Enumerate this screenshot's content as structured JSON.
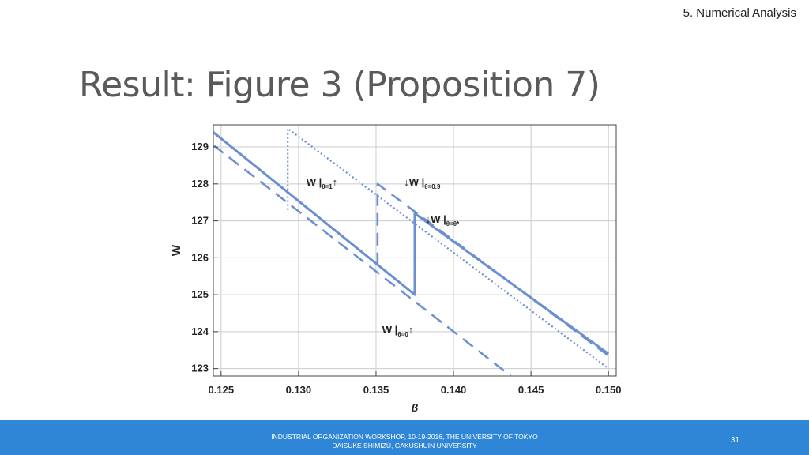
{
  "header": {
    "section": "5. Numerical Analysis",
    "title": "Result: Figure 3 (Proposition 7)"
  },
  "footer": {
    "line1": "INDUSTRIAL ORGANIZATION WORKSHOP, 10-19-2016, THE UNIVERSITY OF TOKYO",
    "line2": "DAISUKE SHIMIZU, GAKUSHUIN UNIVERSITY",
    "page": "31"
  },
  "colors": {
    "series": "#6b8fcf",
    "grid": "#cccccc",
    "footer": "#2f86d6"
  },
  "chart_data": {
    "type": "line",
    "xlabel": "β",
    "ylabel": "W",
    "xlim": [
      0.1245,
      0.1505
    ],
    "ylim": [
      122.8,
      129.6
    ],
    "xticks": [
      0.125,
      0.13,
      0.135,
      0.14,
      0.145,
      0.15
    ],
    "xtick_labels": [
      "0.125",
      "0.130",
      "0.135",
      "0.140",
      "0.145",
      "0.150"
    ],
    "yticks": [
      123,
      124,
      125,
      126,
      127,
      128,
      129
    ],
    "ytick_labels": [
      "123",
      "124",
      "125",
      "126",
      "127",
      "128",
      "129"
    ],
    "grid": true,
    "series": [
      {
        "style": "solid",
        "x": [
          0.1245,
          0.1375,
          0.1375,
          0.15
        ],
        "y": [
          129.4,
          125.0,
          127.2,
          123.4
        ]
      },
      {
        "style": "dotted",
        "x": [
          0.1293,
          0.1293,
          0.15
        ],
        "y": [
          127.3,
          129.5,
          123.0
        ]
      },
      {
        "style": "dashed",
        "x": [
          0.1351,
          0.1351,
          0.15
        ],
        "y": [
          125.8,
          128.0,
          123.35
        ]
      },
      {
        "style": "dashed",
        "x": [
          0.1245,
          0.1437
        ],
        "y": [
          129.05,
          122.8
        ]
      }
    ],
    "annotations": [
      {
        "text": "W |",
        "sub": "θ=1",
        "arrow": "↑",
        "x": 0.1305,
        "y": 127.95
      },
      {
        "text": "↓W |",
        "sub": "θ=0.9",
        "arrow": "",
        "x": 0.1368,
        "y": 127.95
      },
      {
        "text": "↓W |",
        "sub": "θ=θ*",
        "arrow": "",
        "x": 0.1382,
        "y": 126.95
      },
      {
        "text": "W |",
        "sub": "θ=0",
        "arrow": "↑",
        "x": 0.1354,
        "y": 123.95
      }
    ]
  }
}
